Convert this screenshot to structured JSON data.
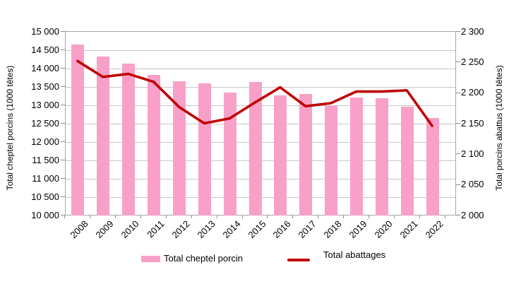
{
  "chart_data": {
    "type": "bar+line",
    "categories": [
      "2008",
      "2009",
      "2010",
      "2011",
      "2012",
      "2013",
      "2014",
      "2015",
      "2016",
      "2017",
      "2018",
      "2019",
      "2020",
      "2021",
      "2022"
    ],
    "series": [
      {
        "name": "Total cheptel porcin",
        "type": "bar",
        "axis": "left",
        "color": "#f8a0c8",
        "values": [
          14660,
          14330,
          14140,
          13830,
          13660,
          13590,
          13350,
          13640,
          13270,
          13300,
          12980,
          13220,
          13200,
          12970,
          12650
        ]
      },
      {
        "name": "Total abattages",
        "type": "line",
        "axis": "right",
        "color": "#c00000",
        "values": [
          2252,
          2226,
          2231,
          2218,
          2177,
          2150,
          2158,
          2184,
          2209,
          2178,
          2183,
          2202,
          2202,
          2204,
          2146
        ]
      }
    ],
    "left_axis": {
      "title": "Total cheptel porcins (1000 têtes)",
      "min": 10000,
      "max": 15000,
      "step": 500,
      "tick_labels": [
        "15 000",
        "14 500",
        "14 000",
        "13 500",
        "13 000",
        "12 500",
        "12 000",
        "11 500",
        "11 000",
        "10 500",
        "10 000"
      ]
    },
    "right_axis": {
      "title": "Total porcins abattus (1000 têtes)",
      "min": 2000,
      "max": 2300,
      "step": 50,
      "tick_labels": [
        "2 300",
        "2 250",
        "2 200",
        "2 150",
        "2 100",
        "2 050",
        "2 000"
      ]
    },
    "grid": true,
    "legend_position": "bottom",
    "title": ""
  },
  "legend": {
    "items": [
      {
        "label": "Total cheptel porcin",
        "swatch": "bar"
      },
      {
        "label": "Total abattages",
        "swatch": "line"
      }
    ]
  },
  "colors": {
    "bar_pink": "#f8a0c8",
    "line_red": "#c00000",
    "gridline": "#c6c6c6",
    "axis_frame": "#a6a6a6",
    "text": "#000000"
  }
}
